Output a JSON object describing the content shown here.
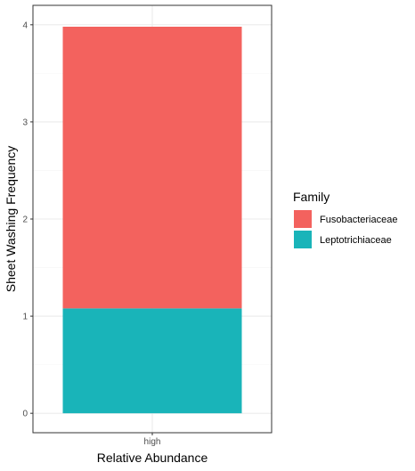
{
  "chart_data": {
    "type": "bar",
    "stacked": true,
    "categories": [
      "high"
    ],
    "series": [
      {
        "name": "Leptotrichiaceae",
        "values": [
          1.08
        ],
        "color": "#19B4B9"
      },
      {
        "name": "Fusobacteriaceae",
        "values": [
          2.9
        ],
        "color": "#F3625E"
      }
    ],
    "xlabel": "Relative Abundance",
    "ylabel": "Sheet Washing Frequency",
    "ylim": [
      -0.2,
      4.2
    ],
    "yticks": [
      0,
      1,
      2,
      3,
      4
    ],
    "grid": true,
    "legend": {
      "title": "Family",
      "position": "right",
      "items": [
        {
          "label": "Fusobacteriaceae",
          "color": "#F3625E"
        },
        {
          "label": "Leptotrichiaceae",
          "color": "#19B4B9"
        }
      ]
    },
    "colors": {
      "panel_border": "#333333",
      "grid_major": "#ebebeb",
      "grid_minor": "#f5f5f5"
    }
  }
}
